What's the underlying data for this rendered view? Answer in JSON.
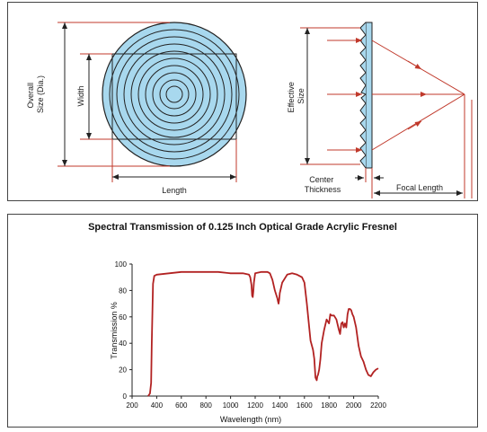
{
  "diagram": {
    "lens_front": {
      "overall_label_1": "Overall",
      "overall_label_2": "Size (Dia.)",
      "width_label": "Width",
      "length_label": "Length"
    },
    "lens_side": {
      "effective_label_1": "Effective",
      "effective_label_2": "Size",
      "center_label_1": "Center",
      "center_label_2": "Thickness",
      "focal_label": "Focal Length"
    },
    "colors": {
      "lens_fill": "#a8d8ee",
      "dimension_red": "#c0392b",
      "outline": "#222222"
    }
  },
  "chart_data": {
    "type": "line",
    "title": "Spectral Transmission of 0.125 Inch Optical Grade Acrylic Fresnel",
    "xlabel": "Wavelength (nm)",
    "ylabel": "Transmission %",
    "xlim": [
      200,
      2200
    ],
    "ylim": [
      0,
      100
    ],
    "xticks": [
      "200",
      "400",
      "600",
      "800",
      "1000",
      "1200",
      "1400",
      "1600",
      "1800",
      "2000",
      "2200"
    ],
    "yticks": [
      "0",
      "20",
      "40",
      "60",
      "80",
      "100"
    ],
    "grid": false,
    "series": [
      {
        "color": "#b22222",
        "x": [
          330,
          345,
          355,
          360,
          370,
          380,
          400,
          500,
          600,
          700,
          800,
          900,
          1000,
          1050,
          1100,
          1150,
          1160,
          1170,
          1175,
          1180,
          1185,
          1190,
          1200,
          1250,
          1300,
          1320,
          1340,
          1360,
          1380,
          1385,
          1390,
          1395,
          1400,
          1420,
          1460,
          1500,
          1540,
          1580,
          1600,
          1620,
          1650,
          1670,
          1680,
          1690,
          1700,
          1705,
          1710,
          1720,
          1730,
          1740,
          1760,
          1780,
          1800,
          1810,
          1820,
          1840,
          1860,
          1880,
          1890,
          1900,
          1910,
          1920,
          1930,
          1940,
          1950,
          1960,
          1970,
          1980,
          1990,
          2000,
          2020,
          2040,
          2060,
          2080,
          2100,
          2120,
          2140,
          2160,
          2180,
          2200
        ],
        "y": [
          0,
          2,
          10,
          40,
          85,
          91,
          92,
          93,
          94,
          94,
          94,
          94,
          93,
          93,
          93,
          92,
          90,
          84,
          76,
          75,
          79,
          86,
          93,
          94,
          94,
          93,
          88,
          80,
          74,
          72,
          70,
          73,
          78,
          86,
          92,
          93,
          92,
          90,
          86,
          70,
          42,
          35,
          28,
          14,
          12,
          15,
          16,
          20,
          28,
          40,
          50,
          58,
          55,
          62,
          61,
          61,
          58,
          50,
          47,
          55,
          56,
          52,
          55,
          52,
          62,
          66,
          66,
          65,
          62,
          60,
          52,
          38,
          30,
          26,
          20,
          16,
          15,
          18,
          20,
          21
        ]
      }
    ]
  }
}
